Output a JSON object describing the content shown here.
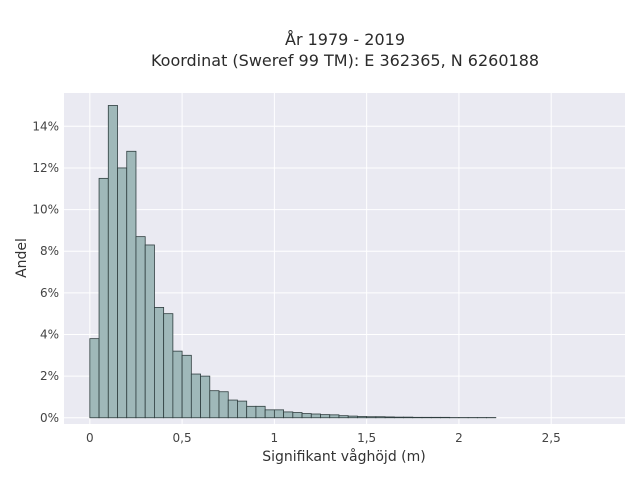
{
  "chart_data": {
    "type": "bar",
    "title_line1": "År 1979 - 2019",
    "title_line2": "Koordinat (Sweref 99 TM): E 362365, N 6260188",
    "xlabel": "Signifikant våghöjd (m)",
    "ylabel": "Andel",
    "bin_width": 0.05,
    "x": [
      0.0,
      0.05,
      0.1,
      0.15,
      0.2,
      0.25,
      0.3,
      0.35,
      0.4,
      0.45,
      0.5,
      0.55,
      0.6,
      0.65,
      0.7,
      0.75,
      0.8,
      0.85,
      0.9,
      0.95,
      1.0,
      1.05,
      1.1,
      1.15,
      1.2,
      1.25,
      1.3,
      1.35,
      1.4,
      1.45,
      1.5,
      1.55,
      1.6,
      1.65,
      1.7,
      1.75,
      1.8,
      1.85,
      1.9,
      1.95,
      2.0,
      2.05,
      2.1,
      2.15
    ],
    "values": [
      3.8,
      11.5,
      15.0,
      12.0,
      12.8,
      8.7,
      8.3,
      5.3,
      5.0,
      3.2,
      3.0,
      2.1,
      2.0,
      1.3,
      1.25,
      0.85,
      0.8,
      0.55,
      0.55,
      0.38,
      0.38,
      0.28,
      0.25,
      0.2,
      0.18,
      0.15,
      0.14,
      0.1,
      0.08,
      0.06,
      0.05,
      0.05,
      0.04,
      0.03,
      0.03,
      0.02,
      0.02,
      0.02,
      0.02,
      0.01,
      0.01,
      0.01,
      0.01,
      0.01
    ],
    "xlim": [
      -0.14,
      2.9
    ],
    "ylim": [
      -0.3,
      15.6
    ],
    "xticks": [
      0,
      0.5,
      1,
      1.5,
      2,
      2.5
    ],
    "xtick_labels": [
      "0",
      "0,5",
      "1",
      "1,5",
      "2",
      "2,5"
    ],
    "yticks": [
      0,
      2,
      4,
      6,
      8,
      10,
      12,
      14
    ],
    "ytick_labels": [
      "0%",
      "2%",
      "4%",
      "6%",
      "8%",
      "10%",
      "12%",
      "14%"
    ],
    "grid": true,
    "colors": {
      "bar_fill": "#9fb8b9",
      "bar_stroke": "#2f3e3f",
      "plot_bg": "#eaeaf2",
      "grid": "#ffffff"
    }
  }
}
